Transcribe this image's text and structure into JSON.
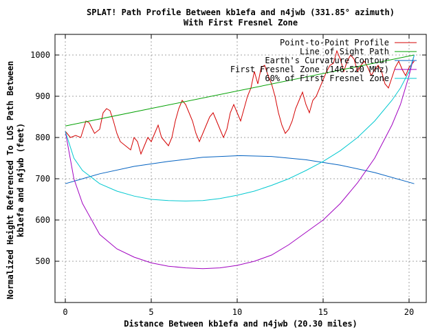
{
  "chart_data": {
    "type": "line",
    "title": "SPLAT! Path Profile Between kb1efa and n4jwb (331.85° azimuth)",
    "subtitle": "With First Fresnel Zone",
    "xlabel": "Distance Between kb1efa and n4jwb (20.30 miles)",
    "ylabel": "Normalized Height Referenced To LOS Path Between",
    "ylabel2": "kb1efa and n4jwb (feet)",
    "xlim": [
      -0.6,
      21
    ],
    "ylim": [
      400,
      1050
    ],
    "xticks": [
      0,
      5,
      10,
      15,
      20
    ],
    "yticks": [
      500,
      600,
      700,
      800,
      900,
      1000
    ],
    "xtick_labels": [
      "0",
      "5",
      "10",
      "15",
      "20"
    ],
    "ytick_labels": [
      "500",
      "600",
      "700",
      "800",
      "900",
      "1000"
    ],
    "grid": true,
    "legend_position": "top-right",
    "series": [
      {
        "name": "Point-to-Point Profile",
        "color": "#d40000",
        "x": [
          0,
          0.3,
          0.6,
          0.9,
          1.2,
          1.4,
          1.7,
          2.0,
          2.2,
          2.4,
          2.6,
          2.8,
          3.0,
          3.2,
          3.5,
          3.8,
          4.0,
          4.2,
          4.4,
          4.6,
          4.8,
          5.0,
          5.2,
          5.4,
          5.6,
          5.8,
          6.0,
          6.2,
          6.4,
          6.6,
          6.8,
          7.0,
          7.2,
          7.4,
          7.6,
          7.8,
          8.0,
          8.2,
          8.4,
          8.6,
          8.8,
          9.0,
          9.2,
          9.4,
          9.6,
          9.8,
          10.0,
          10.2,
          10.4,
          10.6,
          10.8,
          11.0,
          11.2,
          11.4,
          11.6,
          11.8,
          12.0,
          12.2,
          12.4,
          12.6,
          12.8,
          13.0,
          13.2,
          13.4,
          13.6,
          13.8,
          14.0,
          14.2,
          14.4,
          14.6,
          14.8,
          15.0,
          15.2,
          15.4,
          15.6,
          15.8,
          16.0,
          16.2,
          16.4,
          16.6,
          16.8,
          17.0,
          17.2,
          17.4,
          17.6,
          17.8,
          18.0,
          18.2,
          18.4,
          18.6,
          18.8,
          19.0,
          19.2,
          19.4,
          19.6,
          19.8,
          20.0,
          20.3
        ],
        "y": [
          815,
          800,
          805,
          800,
          840,
          835,
          810,
          820,
          860,
          870,
          865,
          840,
          810,
          790,
          780,
          770,
          800,
          790,
          760,
          780,
          800,
          790,
          810,
          830,
          800,
          790,
          780,
          800,
          840,
          870,
          890,
          880,
          860,
          840,
          810,
          790,
          810,
          830,
          850,
          860,
          840,
          820,
          800,
          820,
          860,
          880,
          860,
          840,
          870,
          900,
          920,
          960,
          930,
          970,
          975,
          950,
          930,
          900,
          860,
          830,
          810,
          820,
          840,
          870,
          890,
          910,
          880,
          860,
          890,
          900,
          920,
          940,
          960,
          975,
          980,
          1010,
          990,
          960,
          985,
          1000,
          990,
          960,
          975,
          985,
          970,
          950,
          965,
          975,
          960,
          930,
          920,
          945,
          970,
          985,
          965,
          950,
          970,
          985
        ]
      },
      {
        "name": "Line of Sight Path",
        "color": "#00a000",
        "x": [
          0,
          20.3
        ],
        "y": [
          828,
          1000
        ]
      },
      {
        "name": "Earth's Curvature Contour",
        "color": "#0060c0",
        "x": [
          0,
          2,
          4,
          6,
          8,
          10.15,
          12,
          14,
          16,
          18,
          20.3
        ],
        "y": [
          688,
          712,
          730,
          742,
          752,
          756,
          754,
          746,
          733,
          715,
          688
        ]
      },
      {
        "name": "First Fresnel Zone (146.520 MHz)",
        "color": "#a000c0",
        "x": [
          0,
          0.5,
          1,
          2,
          3,
          4,
          5,
          6,
          7,
          8,
          9,
          10,
          11,
          12,
          13,
          14,
          15,
          16,
          17,
          18,
          19,
          19.5,
          20,
          20.3
        ],
        "y": [
          815,
          700,
          640,
          565,
          530,
          510,
          496,
          488,
          484,
          482,
          484,
          490,
          500,
          515,
          540,
          570,
          600,
          640,
          690,
          750,
          830,
          880,
          950,
          1000
        ]
      },
      {
        "name": "60% of First Fresnel Zone",
        "color": "#00c8d0",
        "x": [
          0,
          0.5,
          1,
          2,
          3,
          4,
          5,
          6,
          7,
          8,
          9,
          10,
          11,
          12,
          13,
          14,
          15,
          16,
          17,
          18,
          19,
          19.5,
          20,
          20.3
        ],
        "y": [
          815,
          750,
          720,
          688,
          670,
          658,
          650,
          647,
          646,
          647,
          652,
          660,
          670,
          684,
          700,
          720,
          742,
          768,
          800,
          840,
          890,
          920,
          960,
          1000
        ]
      }
    ]
  }
}
